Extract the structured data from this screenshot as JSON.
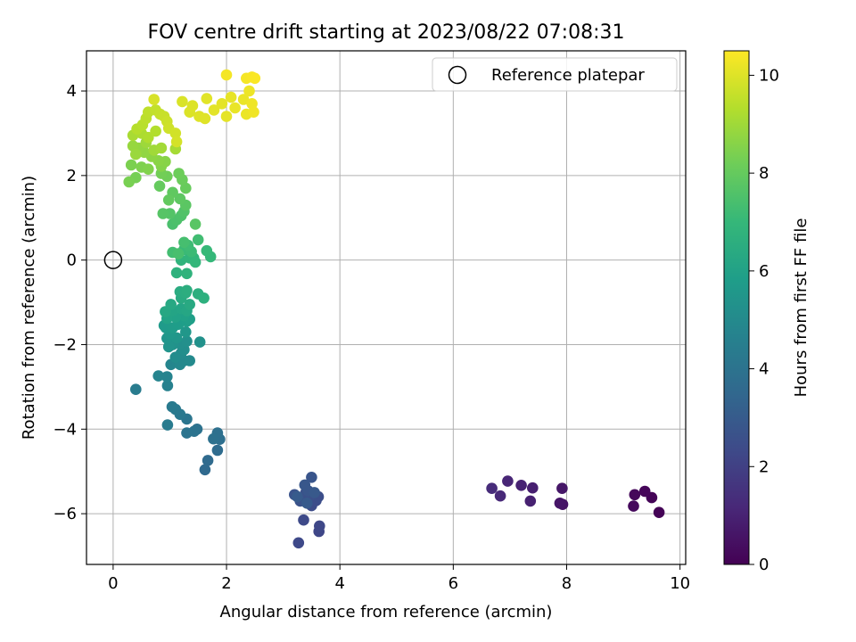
{
  "chart_data": {
    "type": "scatter",
    "title": "FOV centre drift starting at 2023/08/22 07:08:31",
    "xlabel": "Angular distance from reference (arcmin)",
    "ylabel": "Rotation from reference (arcmin)",
    "xlim": [
      -0.47,
      10.1
    ],
    "ylim": [
      -7.2,
      4.95
    ],
    "xticks": [
      0,
      2,
      4,
      6,
      8,
      10
    ],
    "yticks": [
      -6,
      -4,
      -2,
      0,
      2,
      4
    ],
    "grid": true,
    "legend": {
      "position": "top-right",
      "label": "Reference platepar"
    },
    "reference_point": {
      "x": 0,
      "y": 0
    },
    "colorbar": {
      "label": "Hours from first FF file",
      "colormap": "viridis",
      "range": [
        0,
        10.5
      ],
      "ticks": [
        0,
        2,
        4,
        6,
        8,
        10
      ]
    },
    "series": [
      {
        "points": [
          [
            9.63,
            -5.97,
            0.05
          ],
          [
            9.5,
            -5.62,
            0.1
          ],
          [
            9.38,
            -5.47,
            0.15
          ],
          [
            9.2,
            -5.55,
            0.2
          ],
          [
            9.18,
            -5.82,
            0.25
          ],
          [
            7.93,
            -5.78,
            0.55
          ],
          [
            7.88,
            -5.75,
            0.6
          ],
          [
            7.92,
            -5.4,
            0.65
          ],
          [
            7.4,
            -5.39,
            0.9
          ],
          [
            7.36,
            -5.7,
            0.95
          ],
          [
            7.2,
            -5.33,
            1.0
          ],
          [
            6.96,
            -5.23,
            1.1
          ],
          [
            6.83,
            -5.58,
            1.2
          ],
          [
            6.68,
            -5.4,
            1.3
          ],
          [
            3.63,
            -6.42,
            2.2
          ],
          [
            3.64,
            -6.29,
            2.25
          ],
          [
            3.27,
            -6.69,
            2.3
          ],
          [
            3.36,
            -6.15,
            2.35
          ],
          [
            3.5,
            -5.81,
            2.4
          ],
          [
            3.58,
            -5.69,
            2.45
          ],
          [
            3.62,
            -5.6,
            2.5
          ],
          [
            3.45,
            -5.62,
            2.55
          ],
          [
            3.4,
            -5.5,
            2.6
          ],
          [
            3.3,
            -5.7,
            2.65
          ],
          [
            3.2,
            -5.55,
            2.7
          ],
          [
            3.5,
            -5.14,
            2.75
          ],
          [
            3.44,
            -5.46,
            2.8
          ],
          [
            3.38,
            -5.32,
            2.85
          ],
          [
            3.55,
            -5.5,
            2.9
          ],
          [
            3.42,
            -5.75,
            2.95
          ],
          [
            3.25,
            -5.6,
            3.0
          ],
          [
            1.62,
            -4.96,
            3.6
          ],
          [
            1.67,
            -4.74,
            3.65
          ],
          [
            1.84,
            -4.5,
            3.7
          ],
          [
            1.88,
            -4.24,
            3.8
          ],
          [
            1.84,
            -4.09,
            3.85
          ],
          [
            1.77,
            -4.23,
            3.9
          ],
          [
            1.48,
            -4.0,
            3.95
          ],
          [
            1.43,
            -4.05,
            4.0
          ],
          [
            1.3,
            -4.09,
            4.05
          ],
          [
            1.3,
            -3.76,
            4.1
          ],
          [
            1.18,
            -3.65,
            4.2
          ],
          [
            1.1,
            -3.53,
            4.25
          ],
          [
            1.04,
            -3.47,
            4.3
          ],
          [
            0.96,
            -3.9,
            4.35
          ],
          [
            0.4,
            -3.06,
            4.4
          ],
          [
            0.96,
            -2.97,
            4.6
          ],
          [
            0.95,
            -2.76,
            4.7
          ],
          [
            0.8,
            -2.74,
            4.75
          ],
          [
            1.02,
            -2.47,
            4.8
          ],
          [
            1.13,
            -2.42,
            4.85
          ],
          [
            1.18,
            -2.47,
            4.9
          ],
          [
            1.25,
            -2.38,
            4.95
          ],
          [
            1.35,
            -2.38,
            5.0
          ],
          [
            1.2,
            -2.2,
            5.05
          ],
          [
            1.1,
            -2.3,
            5.1
          ],
          [
            1.25,
            -2.12,
            5.15
          ],
          [
            1.18,
            -1.98,
            5.2
          ],
          [
            1.3,
            -1.92,
            5.25
          ],
          [
            1.53,
            -1.94,
            5.3
          ],
          [
            1.05,
            -2.0,
            5.35
          ],
          [
            0.98,
            -2.05,
            5.4
          ],
          [
            0.95,
            -1.85,
            5.45
          ],
          [
            1.12,
            -1.84,
            5.5
          ],
          [
            1.28,
            -1.7,
            5.55
          ],
          [
            1.0,
            -1.75,
            5.6
          ],
          [
            0.93,
            -1.6,
            5.65
          ],
          [
            0.9,
            -1.55,
            5.7
          ],
          [
            1.05,
            -1.6,
            5.75
          ],
          [
            1.15,
            -1.52,
            5.8
          ],
          [
            1.3,
            -1.45,
            5.85
          ],
          [
            1.35,
            -1.4,
            5.9
          ],
          [
            1.25,
            -1.32,
            5.95
          ],
          [
            1.1,
            -1.35,
            6.0
          ],
          [
            0.95,
            -1.38,
            6.05
          ],
          [
            1.05,
            -1.2,
            6.1
          ],
          [
            1.2,
            -1.15,
            6.15
          ],
          [
            1.3,
            -1.2,
            6.2
          ],
          [
            0.92,
            -1.22,
            6.25
          ],
          [
            1.02,
            -1.05,
            6.3
          ],
          [
            1.35,
            -1.05,
            6.35
          ],
          [
            1.2,
            -0.9,
            6.4
          ],
          [
            1.18,
            -0.75,
            6.45
          ],
          [
            1.28,
            -0.78,
            6.5
          ],
          [
            1.3,
            -0.72,
            6.55
          ],
          [
            1.5,
            -0.8,
            6.6
          ],
          [
            1.6,
            -0.9,
            6.65
          ],
          [
            1.12,
            -0.3,
            6.7
          ],
          [
            1.3,
            -0.32,
            6.75
          ],
          [
            1.2,
            0.0,
            6.8
          ],
          [
            1.35,
            0.05,
            6.85
          ],
          [
            1.42,
            0.05,
            6.9
          ],
          [
            1.45,
            -0.05,
            6.95
          ],
          [
            1.72,
            0.08,
            7.0
          ],
          [
            1.65,
            0.22,
            7.05
          ],
          [
            1.25,
            0.25,
            7.1
          ],
          [
            1.38,
            0.2,
            7.15
          ],
          [
            1.32,
            0.35,
            7.2
          ],
          [
            1.5,
            0.48,
            7.25
          ],
          [
            1.05,
            0.18,
            7.3
          ],
          [
            1.25,
            0.42,
            7.35
          ],
          [
            1.15,
            0.15,
            7.4
          ],
          [
            1.05,
            0.85,
            7.45
          ],
          [
            1.12,
            0.95,
            7.5
          ],
          [
            1.2,
            1.05,
            7.55
          ],
          [
            1.25,
            1.15,
            7.6
          ],
          [
            1.0,
            1.1,
            7.65
          ],
          [
            0.88,
            1.1,
            7.7
          ],
          [
            1.45,
            0.85,
            7.75
          ],
          [
            1.28,
            1.3,
            7.8
          ],
          [
            1.18,
            1.45,
            7.85
          ],
          [
            1.05,
            1.6,
            7.9
          ],
          [
            0.98,
            1.42,
            7.95
          ],
          [
            0.82,
            1.75,
            8.0
          ],
          [
            1.28,
            1.7,
            8.05
          ],
          [
            1.22,
            1.9,
            8.1
          ],
          [
            1.16,
            2.05,
            8.15
          ],
          [
            0.95,
            1.98,
            8.2
          ],
          [
            0.85,
            2.05,
            8.25
          ],
          [
            0.4,
            1.95,
            8.3
          ],
          [
            0.28,
            1.85,
            8.35
          ],
          [
            0.32,
            2.25,
            8.4
          ],
          [
            0.5,
            2.2,
            8.45
          ],
          [
            0.62,
            2.15,
            8.5
          ],
          [
            0.85,
            2.22,
            8.55
          ],
          [
            0.92,
            2.33,
            8.6
          ],
          [
            0.8,
            2.35,
            8.65
          ],
          [
            0.68,
            2.45,
            8.7
          ],
          [
            0.55,
            2.55,
            8.75
          ],
          [
            0.45,
            2.65,
            8.8
          ],
          [
            0.35,
            2.7,
            8.85
          ],
          [
            0.4,
            2.5,
            8.9
          ],
          [
            0.58,
            2.78,
            8.95
          ],
          [
            0.72,
            2.6,
            9.0
          ],
          [
            0.85,
            2.65,
            9.05
          ],
          [
            1.1,
            2.63,
            9.1
          ],
          [
            0.35,
            2.95,
            9.15
          ],
          [
            0.5,
            3.0,
            9.2
          ],
          [
            0.62,
            2.9,
            9.25
          ],
          [
            0.75,
            3.05,
            9.3
          ],
          [
            0.42,
            3.1,
            9.35
          ],
          [
            0.52,
            3.2,
            9.4
          ],
          [
            0.58,
            3.35,
            9.45
          ],
          [
            0.62,
            3.5,
            9.5
          ],
          [
            0.75,
            3.55,
            9.55
          ],
          [
            0.83,
            3.45,
            9.6
          ],
          [
            0.9,
            3.4,
            9.65
          ],
          [
            0.95,
            3.28,
            9.7
          ],
          [
            0.98,
            3.12,
            9.75
          ],
          [
            1.1,
            3.0,
            9.8
          ],
          [
            1.12,
            2.8,
            9.85
          ],
          [
            0.72,
            3.8,
            9.9
          ],
          [
            1.22,
            3.75,
            9.92
          ],
          [
            1.35,
            3.5,
            9.95
          ],
          [
            1.4,
            3.65,
            9.97
          ],
          [
            1.52,
            3.4,
            10.0
          ],
          [
            1.62,
            3.35,
            10.02
          ],
          [
            1.65,
            3.82,
            10.05
          ],
          [
            1.78,
            3.55,
            10.08
          ],
          [
            1.92,
            3.7,
            10.1
          ],
          [
            2.0,
            3.4,
            10.12
          ],
          [
            2.08,
            3.85,
            10.15
          ],
          [
            2.15,
            3.6,
            10.18
          ],
          [
            2.3,
            3.8,
            10.2
          ],
          [
            2.35,
            3.45,
            10.22
          ],
          [
            2.4,
            4.0,
            10.25
          ],
          [
            2.45,
            3.7,
            10.28
          ],
          [
            2.48,
            3.5,
            10.3
          ],
          [
            2.0,
            4.38,
            10.35
          ],
          [
            2.35,
            4.3,
            10.38
          ],
          [
            2.45,
            4.33,
            10.42
          ],
          [
            2.5,
            4.3,
            10.45
          ]
        ]
      }
    ]
  }
}
